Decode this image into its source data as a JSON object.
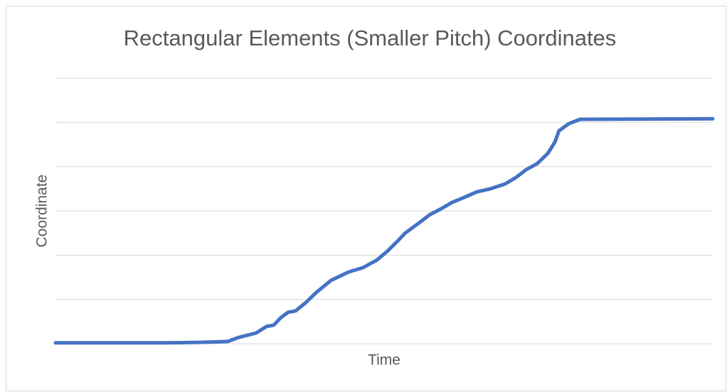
{
  "chart_data": {
    "type": "line",
    "title": "Rectangular Elements (Smaller Pitch) Coordinates",
    "xlabel": "Time",
    "ylabel": "Coordinate",
    "x": [
      0,
      16.5,
      21.9,
      26.2,
      27.8,
      30.5,
      32.1,
      33.2,
      34.3,
      35.4,
      36.5,
      38.1,
      39.7,
      41.9,
      44.6,
      46.8,
      48.9,
      50.5,
      52.2,
      53.2,
      55.4,
      57.0,
      58.7,
      60.3,
      62.4,
      64.1,
      66.2,
      68.4,
      70.0,
      71.6,
      73.3,
      74.9,
      76.0,
      76.6,
      78.1,
      79.8,
      100
    ],
    "series": [
      {
        "name": "Coordinate",
        "color": "#4472c4",
        "values": [
          0.02,
          0.02,
          0.03,
          0.05,
          0.14,
          0.24,
          0.39,
          0.42,
          0.59,
          0.71,
          0.74,
          0.93,
          1.16,
          1.43,
          1.62,
          1.72,
          1.89,
          2.09,
          2.34,
          2.5,
          2.74,
          2.92,
          3.05,
          3.19,
          3.32,
          3.43,
          3.5,
          3.61,
          3.75,
          3.93,
          4.07,
          4.3,
          4.56,
          4.81,
          4.97,
          5.07,
          5.08
        ]
      }
    ],
    "xlim": [
      0,
      100
    ],
    "ylim": [
      0,
      6
    ],
    "yticks": [
      0,
      1,
      2,
      3,
      4,
      5,
      6
    ],
    "grid": true
  }
}
